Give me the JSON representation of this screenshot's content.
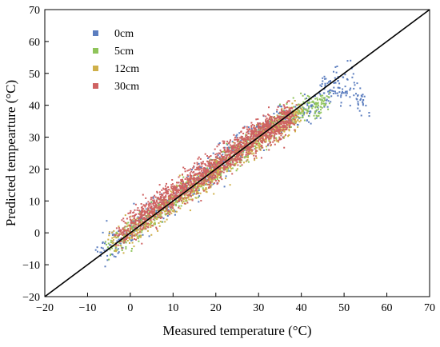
{
  "chart_data": {
    "type": "scatter",
    "title": "",
    "xlabel": "Measured temperature (°C)",
    "ylabel": "Predicted tempearture (°C)",
    "xlim": [
      -20,
      70
    ],
    "ylim": [
      -20,
      70
    ],
    "xticks": [
      -20,
      -10,
      0,
      10,
      20,
      30,
      40,
      50,
      60,
      70
    ],
    "yticks": [
      -20,
      -10,
      0,
      10,
      20,
      30,
      40,
      50,
      60,
      70
    ],
    "grid": false,
    "legend_position": "top-left",
    "reference_line": {
      "type": "1:1",
      "from": [
        -20,
        -20
      ],
      "to": [
        70,
        70
      ],
      "color": "#000000"
    },
    "series": [
      {
        "name": "0cm",
        "color": "#5b7dbf",
        "x_range": [
          -8,
          55
        ],
        "point_count": 600,
        "points": [
          [
            -7,
            -5
          ],
          [
            -5,
            -4
          ],
          [
            0,
            1
          ],
          [
            5,
            6
          ],
          [
            10,
            11
          ],
          [
            15,
            16
          ],
          [
            20,
            21
          ],
          [
            25,
            26
          ],
          [
            30,
            31
          ],
          [
            35,
            35
          ],
          [
            40,
            38
          ],
          [
            42,
            37
          ],
          [
            45,
            44
          ],
          [
            48,
            46
          ],
          [
            50,
            45
          ],
          [
            52,
            47
          ],
          [
            54,
            41
          ]
        ]
      },
      {
        "name": "5cm",
        "color": "#8fc45a",
        "x_range": [
          -6,
          46
        ],
        "point_count": 700,
        "points": [
          [
            -6,
            -5
          ],
          [
            -3,
            -2
          ],
          [
            0,
            0
          ],
          [
            5,
            5
          ],
          [
            10,
            10
          ],
          [
            15,
            15
          ],
          [
            20,
            20
          ],
          [
            25,
            25
          ],
          [
            30,
            30
          ],
          [
            35,
            35
          ],
          [
            38,
            37
          ],
          [
            40,
            38
          ],
          [
            42,
            40
          ],
          [
            44,
            39
          ],
          [
            45,
            41
          ]
        ]
      },
      {
        "name": "12cm",
        "color": "#cfb04a",
        "x_range": [
          -5,
          40
        ],
        "point_count": 800,
        "points": [
          [
            -5,
            -3
          ],
          [
            -2,
            -1
          ],
          [
            0,
            0
          ],
          [
            5,
            5
          ],
          [
            10,
            10
          ],
          [
            15,
            14
          ],
          [
            20,
            19
          ],
          [
            25,
            24
          ],
          [
            30,
            29
          ],
          [
            35,
            33
          ],
          [
            38,
            36
          ],
          [
            40,
            38
          ]
        ]
      },
      {
        "name": "30cm",
        "color": "#cf6262",
        "x_range": [
          -3,
          38
        ],
        "point_count": 1600,
        "points": [
          [
            -2,
            0
          ],
          [
            0,
            2
          ],
          [
            5,
            7
          ],
          [
            10,
            12
          ],
          [
            15,
            17
          ],
          [
            20,
            21
          ],
          [
            25,
            26
          ],
          [
            30,
            31
          ],
          [
            33,
            33
          ],
          [
            35,
            34
          ],
          [
            37,
            36
          ],
          [
            38,
            37
          ]
        ]
      }
    ]
  }
}
